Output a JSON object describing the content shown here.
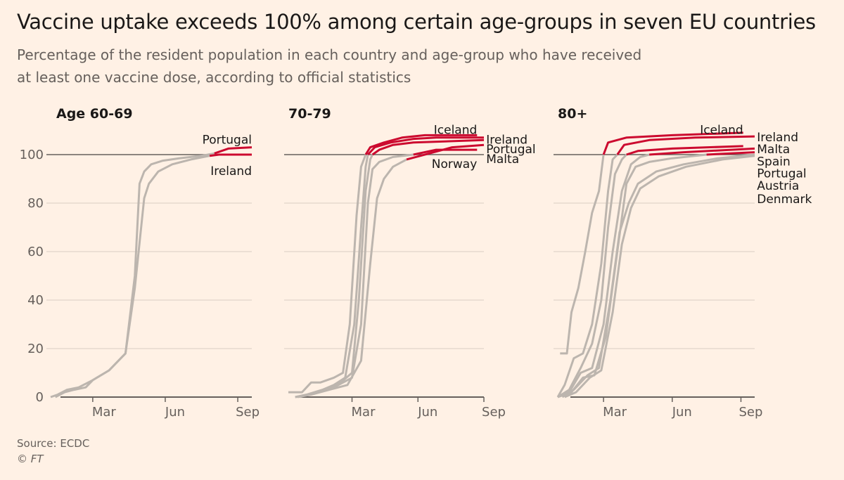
{
  "title": "Vaccine uptake exceeds 100% among certain age-groups in seven EU countries",
  "subtitle_line1": "Percentage of the resident population in each country and age-group who have received",
  "subtitle_line2": "at least one vaccine dose, according to official statistics",
  "source": "Source: ECDC",
  "copyright": "© FT",
  "colors": {
    "background": "#fff1e5",
    "highlight": "#cc0a2f",
    "other": "#bcb5ae",
    "reference": "#66605c",
    "grid": "#e6d9ce"
  },
  "chart_data": [
    {
      "type": "line",
      "title": "Age 60-69",
      "ylim": [
        0,
        110
      ],
      "yticks": [
        0,
        20,
        40,
        60,
        80,
        100
      ],
      "ytick_labels": [
        "0",
        "20",
        "40",
        "60",
        "80",
        "100"
      ],
      "xlim": [
        0,
        8.6
      ],
      "xticks": [
        1.8,
        4.9,
        8.0
      ],
      "xtick_labels": [
        "Mar",
        "Jun",
        "Sep"
      ],
      "reference_line": 100,
      "labels": [
        {
          "text": "Portugal",
          "y": 106,
          "anchor": "end",
          "x": 8.6
        },
        {
          "text": "Ireland",
          "y": 93,
          "anchor": "end",
          "x": 8.6
        }
      ],
      "series": [
        {
          "name": "Portugal",
          "highlight_from": 7.0,
          "x": [
            0,
            0.3,
            0.7,
            1.2,
            1.8,
            2.5,
            3.2,
            3.6,
            3.8,
            4.0,
            4.3,
            4.8,
            5.5,
            6.5,
            7.0,
            7.6,
            8.6
          ],
          "y": [
            0,
            1,
            3,
            4,
            7,
            11,
            18,
            50,
            88,
            93,
            96,
            97.5,
            98.5,
            99.6,
            100.5,
            102.5,
            103
          ]
        },
        {
          "name": "Ireland",
          "highlight_from": 7.0,
          "x": [
            0.2,
            0.6,
            1.0,
            1.5,
            1.8,
            2.5,
            3.2,
            3.6,
            4.0,
            4.2,
            4.6,
            5.2,
            6.0,
            6.8,
            7.2,
            8.6
          ],
          "y": [
            0,
            2,
            3,
            4,
            7,
            11,
            18,
            45,
            82,
            88,
            93,
            96,
            98,
            99.5,
            100,
            100
          ]
        }
      ]
    },
    {
      "type": "line",
      "title": "70-79",
      "ylim": [
        0,
        110
      ],
      "yticks": [
        0,
        20,
        40,
        60,
        80,
        100
      ],
      "xlim": [
        0,
        8.6
      ],
      "xticks": [
        2.8,
        5.7,
        8.6
      ],
      "xtick_labels": [
        "Mar",
        "Jun",
        "Sep"
      ],
      "reference_line": 100,
      "labels": [
        {
          "text": "Iceland",
          "y": 110,
          "anchor": "end",
          "x": 8.3
        },
        {
          "text": "Norway",
          "y": 96,
          "anchor": "end",
          "x": 8.3
        },
        {
          "text": "Ireland",
          "y": 106,
          "anchor": "start",
          "x": 8.7
        },
        {
          "text": "Portugal",
          "y": 102,
          "anchor": "start",
          "x": 8.7
        },
        {
          "text": "Malta",
          "y": 98,
          "anchor": "start",
          "x": 8.7
        }
      ],
      "series": [
        {
          "name": "Iceland",
          "highlight_from": 3.4,
          "x": [
            0,
            0.6,
            1.0,
            1.4,
            2.0,
            2.4,
            2.7,
            3.0,
            3.2,
            3.4,
            3.6,
            4.2,
            5.0,
            6.0,
            8.3
          ],
          "y": [
            2,
            2,
            6,
            6,
            8,
            10,
            30,
            75,
            95,
            100,
            103,
            105,
            107,
            108,
            108
          ]
        },
        {
          "name": "Ireland",
          "highlight_from": 3.5,
          "x": [
            0.3,
            0.8,
            1.5,
            2.0,
            2.5,
            2.9,
            3.2,
            3.4,
            3.5,
            3.8,
            4.5,
            5.5,
            6.5,
            8.6
          ],
          "y": [
            0,
            1,
            3,
            5,
            8,
            30,
            70,
            95,
            100,
            103,
            105,
            106.5,
            107,
            107
          ]
        },
        {
          "name": "Portugal",
          "highlight_from": 3.7,
          "x": [
            0.3,
            0.9,
            1.6,
            2.3,
            2.8,
            3.1,
            3.4,
            3.6,
            3.7,
            4.0,
            4.6,
            5.5,
            8.6
          ],
          "y": [
            0,
            1,
            3,
            6,
            10,
            40,
            85,
            98,
            100,
            102,
            104,
            105,
            106
          ]
        },
        {
          "name": "Malta",
          "highlight_from": 5.5,
          "x": [
            0.5,
            1.2,
            2.0,
            2.8,
            3.2,
            3.5,
            3.7,
            4.0,
            4.6,
            5.5,
            6.5,
            8.3
          ],
          "y": [
            0,
            2,
            4,
            8,
            30,
            80,
            94,
            97,
            99,
            100,
            102,
            102
          ]
        },
        {
          "name": "Norway",
          "highlight_from": 5.2,
          "x": [
            0.4,
            1.0,
            1.8,
            2.6,
            3.2,
            3.6,
            3.9,
            4.2,
            4.6,
            5.2,
            6.2,
            7.2,
            8.6
          ],
          "y": [
            0,
            1,
            3,
            5,
            15,
            55,
            82,
            90,
            95,
            98,
            100.5,
            103,
            104
          ]
        }
      ]
    },
    {
      "type": "line",
      "title": "80+",
      "ylim": [
        0,
        110
      ],
      "yticks": [
        0,
        20,
        40,
        60,
        80,
        100
      ],
      "xlim": [
        0,
        8.6
      ],
      "xticks": [
        2.0,
        5.0,
        8.0
      ],
      "xtick_labels": [
        "Mar",
        "Jun",
        "Sep"
      ],
      "reference_line": 100,
      "labels": [
        {
          "text": "Iceland",
          "y": 110,
          "anchor": "end",
          "x": 8.1
        },
        {
          "text": "Ireland",
          "y": 107,
          "anchor": "start",
          "x": 8.7
        },
        {
          "text": "Malta",
          "y": 102,
          "anchor": "start",
          "x": 8.7
        },
        {
          "text": "Spain",
          "y": 97,
          "anchor": "start",
          "x": 8.7
        },
        {
          "text": "Portugal",
          "y": 92,
          "anchor": "start",
          "x": 8.7
        },
        {
          "text": "Austria",
          "y": 87,
          "anchor": "start",
          "x": 8.7
        },
        {
          "text": "Denmark",
          "y": 81.5,
          "anchor": "start",
          "x": 8.7
        }
      ],
      "series": [
        {
          "name": "Iceland",
          "highlight_from": 2.0,
          "x": [
            0.1,
            0.4,
            0.6,
            0.9,
            1.2,
            1.5,
            1.8,
            2.0,
            2.2,
            3.0,
            5.0,
            8.1
          ],
          "y": [
            18,
            18,
            35,
            45,
            60,
            76,
            85,
            100,
            105,
            107,
            108,
            109
          ]
        },
        {
          "name": "Ireland",
          "highlight_from": 2.6,
          "x": [
            0,
            0.3,
            0.7,
            1.1,
            1.5,
            1.9,
            2.2,
            2.4,
            2.6,
            2.9,
            4.0,
            6.0,
            8.6
          ],
          "y": [
            0,
            5,
            16,
            18,
            30,
            55,
            85,
            98,
            100,
            104,
            106,
            107,
            107.5
          ]
        },
        {
          "name": "Malta",
          "highlight_from": 3.0,
          "x": [
            0,
            0.5,
            1.0,
            1.5,
            1.9,
            2.2,
            2.5,
            2.8,
            3.0,
            3.5,
            5.0,
            8.1
          ],
          "y": [
            0,
            3,
            12,
            22,
            40,
            70,
            92,
            98,
            100,
            101.5,
            102.5,
            103.5
          ]
        },
        {
          "name": "Spain",
          "highlight_from": 4.0,
          "x": [
            0,
            0.5,
            1.0,
            1.5,
            2.0,
            2.4,
            2.8,
            3.2,
            3.6,
            4.0,
            5.5,
            8.6
          ],
          "y": [
            0,
            2,
            10,
            12,
            30,
            60,
            85,
            96,
            99,
            100,
            101,
            102.5
          ]
        },
        {
          "name": "Portugal",
          "highlight_from": 6.5,
          "x": [
            0,
            0.6,
            1.1,
            1.6,
            2.1,
            2.6,
            3.0,
            3.4,
            4.0,
            5.0,
            6.5,
            8.6
          ],
          "y": [
            0,
            2,
            8,
            9,
            25,
            60,
            88,
            95,
            97,
            98.5,
            100,
            101
          ]
        },
        {
          "name": "Austria",
          "x": [
            0.2,
            0.7,
            1.3,
            1.8,
            2.3,
            2.7,
            3.1,
            3.5,
            4.3,
            5.5,
            7.0,
            8.6
          ],
          "y": [
            0,
            3,
            9,
            12,
            40,
            68,
            80,
            88,
            93,
            96,
            98.5,
            100
          ]
        },
        {
          "name": "Denmark",
          "x": [
            0.3,
            0.8,
            1.4,
            1.9,
            2.4,
            2.8,
            3.2,
            3.6,
            4.4,
            5.6,
            7.2,
            8.6
          ],
          "y": [
            0,
            2,
            8,
            11,
            35,
            63,
            78,
            86,
            91,
            95,
            98,
            99.5
          ]
        }
      ]
    }
  ]
}
